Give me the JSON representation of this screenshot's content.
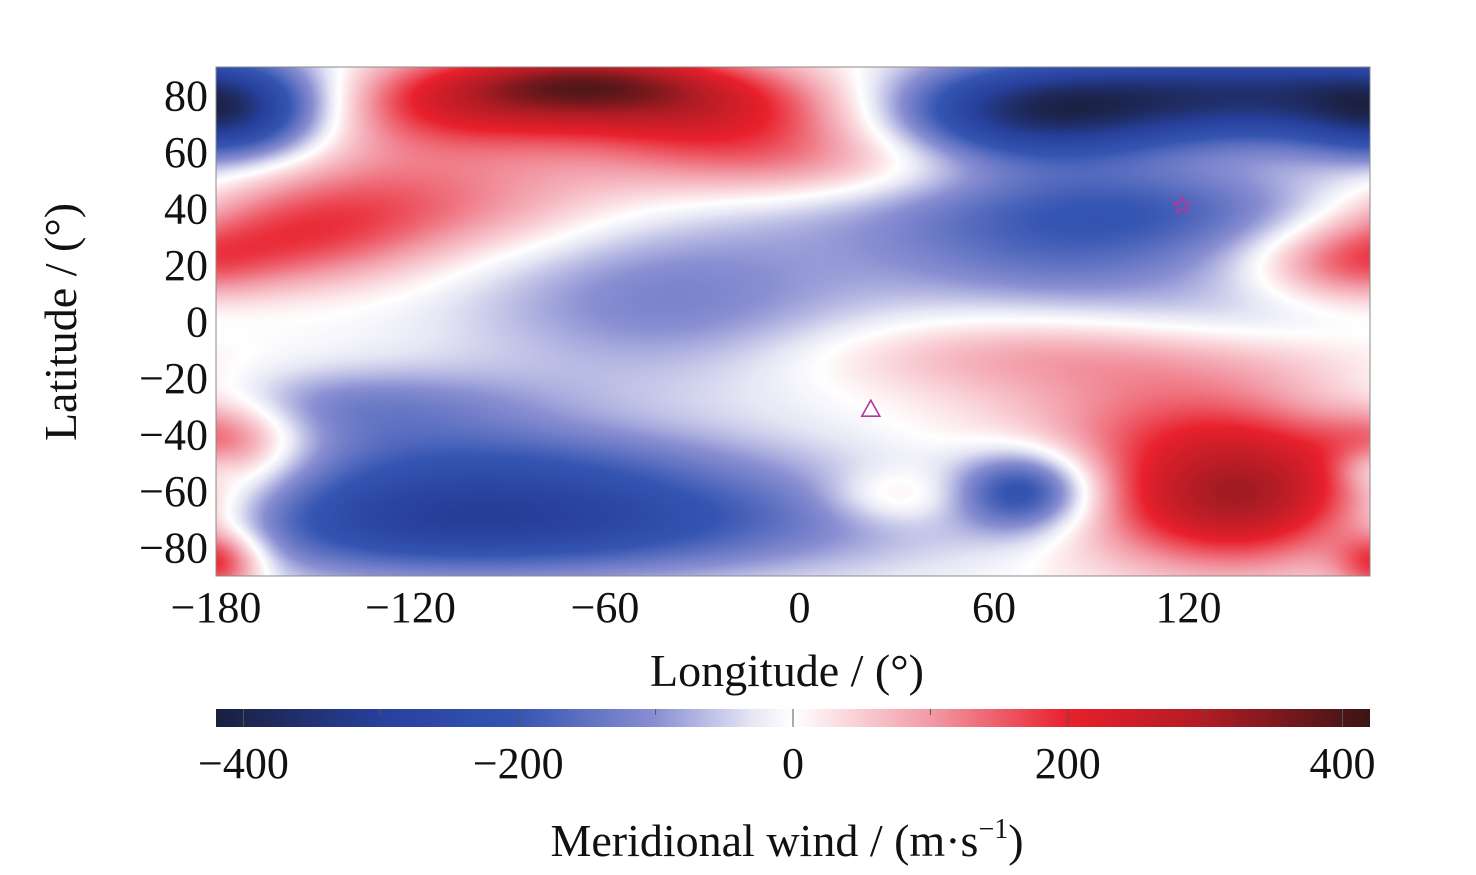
{
  "chart_data": {
    "type": "heatmap",
    "xlabel": "Longitude / (°)",
    "ylabel": "Latitude / (°)",
    "x_ticks": [
      -180,
      -120,
      -60,
      0,
      60,
      120
    ],
    "x_tick_labels": [
      "−180",
      "−120",
      "−60",
      "0",
      "60",
      "120"
    ],
    "y_ticks": [
      80,
      60,
      40,
      20,
      0,
      -20,
      -40,
      -60,
      -80
    ],
    "y_tick_labels": [
      "80",
      "60",
      "40",
      "20",
      "0",
      "−20",
      "−40",
      "−60",
      "−80"
    ],
    "xlim": [
      -180,
      176
    ],
    "ylim": [
      -90,
      90
    ],
    "colorbar": {
      "label_main": "Meridional wind / (m·s",
      "label_exp": "−1",
      "label_close": ")",
      "range": [
        -420,
        420
      ],
      "ticks": [
        -400,
        -200,
        0,
        200,
        400
      ],
      "tick_labels": [
        "−400",
        "−200",
        "0",
        "200",
        "400"
      ],
      "minor_ticks": [
        -300,
        -100,
        100,
        300
      ],
      "colors": [
        [
          -420,
          "#1a1f3d"
        ],
        [
          -300,
          "#27409c"
        ],
        [
          -200,
          "#3555b2"
        ],
        [
          -100,
          "#8a8fd2"
        ],
        [
          -30,
          "#e6e6f5"
        ],
        [
          0,
          "#ffffff"
        ],
        [
          30,
          "#fbe0e4"
        ],
        [
          100,
          "#f29aa6"
        ],
        [
          200,
          "#e8202c"
        ],
        [
          300,
          "#b01c24"
        ],
        [
          420,
          "#3a1515"
        ]
      ]
    },
    "field_components": [
      {
        "lon": -110,
        "lat": 78,
        "amp": 260,
        "slon": 40,
        "slat": 12
      },
      {
        "lon": -65,
        "lat": 85,
        "amp": 200,
        "slon": 28,
        "slat": 8
      },
      {
        "lon": -25,
        "lat": 75,
        "amp": 200,
        "slon": 35,
        "slat": 12
      },
      {
        "lon": -175,
        "lat": 72,
        "amp": -230,
        "slon": 20,
        "slat": 12
      },
      {
        "lon": 140,
        "lat": 80,
        "amp": -340,
        "slon": 60,
        "slat": 12
      },
      {
        "lon": 70,
        "lat": 72,
        "amp": -240,
        "slon": 30,
        "slat": 12
      },
      {
        "lon": -130,
        "lat": 42,
        "amp": 150,
        "slon": 50,
        "slat": 14
      },
      {
        "lon": -160,
        "lat": 28,
        "amp": 120,
        "slon": 30,
        "slat": 12
      },
      {
        "lon": 0,
        "lat": 55,
        "amp": 100,
        "slon": 40,
        "slat": 10
      },
      {
        "lon": 100,
        "lat": 40,
        "amp": -180,
        "slon": 60,
        "slat": 12
      },
      {
        "lon": 80,
        "lat": 20,
        "amp": -100,
        "slon": 40,
        "slat": 12
      },
      {
        "lon": 168,
        "lat": 20,
        "amp": 120,
        "slon": 20,
        "slat": 10
      },
      {
        "lon": -40,
        "lat": 8,
        "amp": -120,
        "slon": 45,
        "slat": 22
      },
      {
        "lon": 140,
        "lat": 0,
        "amp": -50,
        "slon": 40,
        "slat": 12
      },
      {
        "lon": 80,
        "lat": -12,
        "amp": 90,
        "slon": 60,
        "slat": 10
      },
      {
        "lon": 135,
        "lat": -35,
        "amp": 160,
        "slon": 45,
        "slat": 14
      },
      {
        "lon": -175,
        "lat": -40,
        "amp": 120,
        "slon": 15,
        "slat": 10
      },
      {
        "lon": -150,
        "lat": -30,
        "amp": -140,
        "slon": 50,
        "slat": 10
      },
      {
        "lon": -100,
        "lat": -70,
        "amp": -300,
        "slon": 80,
        "slat": 14
      },
      {
        "lon": -100,
        "lat": -48,
        "amp": -100,
        "slon": 60,
        "slat": 10
      },
      {
        "lon": 70,
        "lat": -60,
        "amp": -240,
        "slon": 15,
        "slat": 10
      },
      {
        "lon": 30,
        "lat": -62,
        "amp": 80,
        "slon": 15,
        "slat": 7
      },
      {
        "lon": 140,
        "lat": -65,
        "amp": 380,
        "slon": 35,
        "slat": 16
      },
      {
        "lon": -180,
        "lat": -85,
        "amp": 200,
        "slon": 10,
        "slat": 8
      },
      {
        "lon": 176,
        "lat": -52,
        "amp": -80,
        "slon": 8,
        "slat": 6
      }
    ],
    "markers": [
      {
        "type": "star",
        "lon": 118,
        "lat": 41,
        "color": "#b03aa0"
      },
      {
        "type": "triangle",
        "lon": 22,
        "lat": -31,
        "color": "#b03aa0"
      }
    ],
    "grid": false,
    "legend": "none"
  }
}
